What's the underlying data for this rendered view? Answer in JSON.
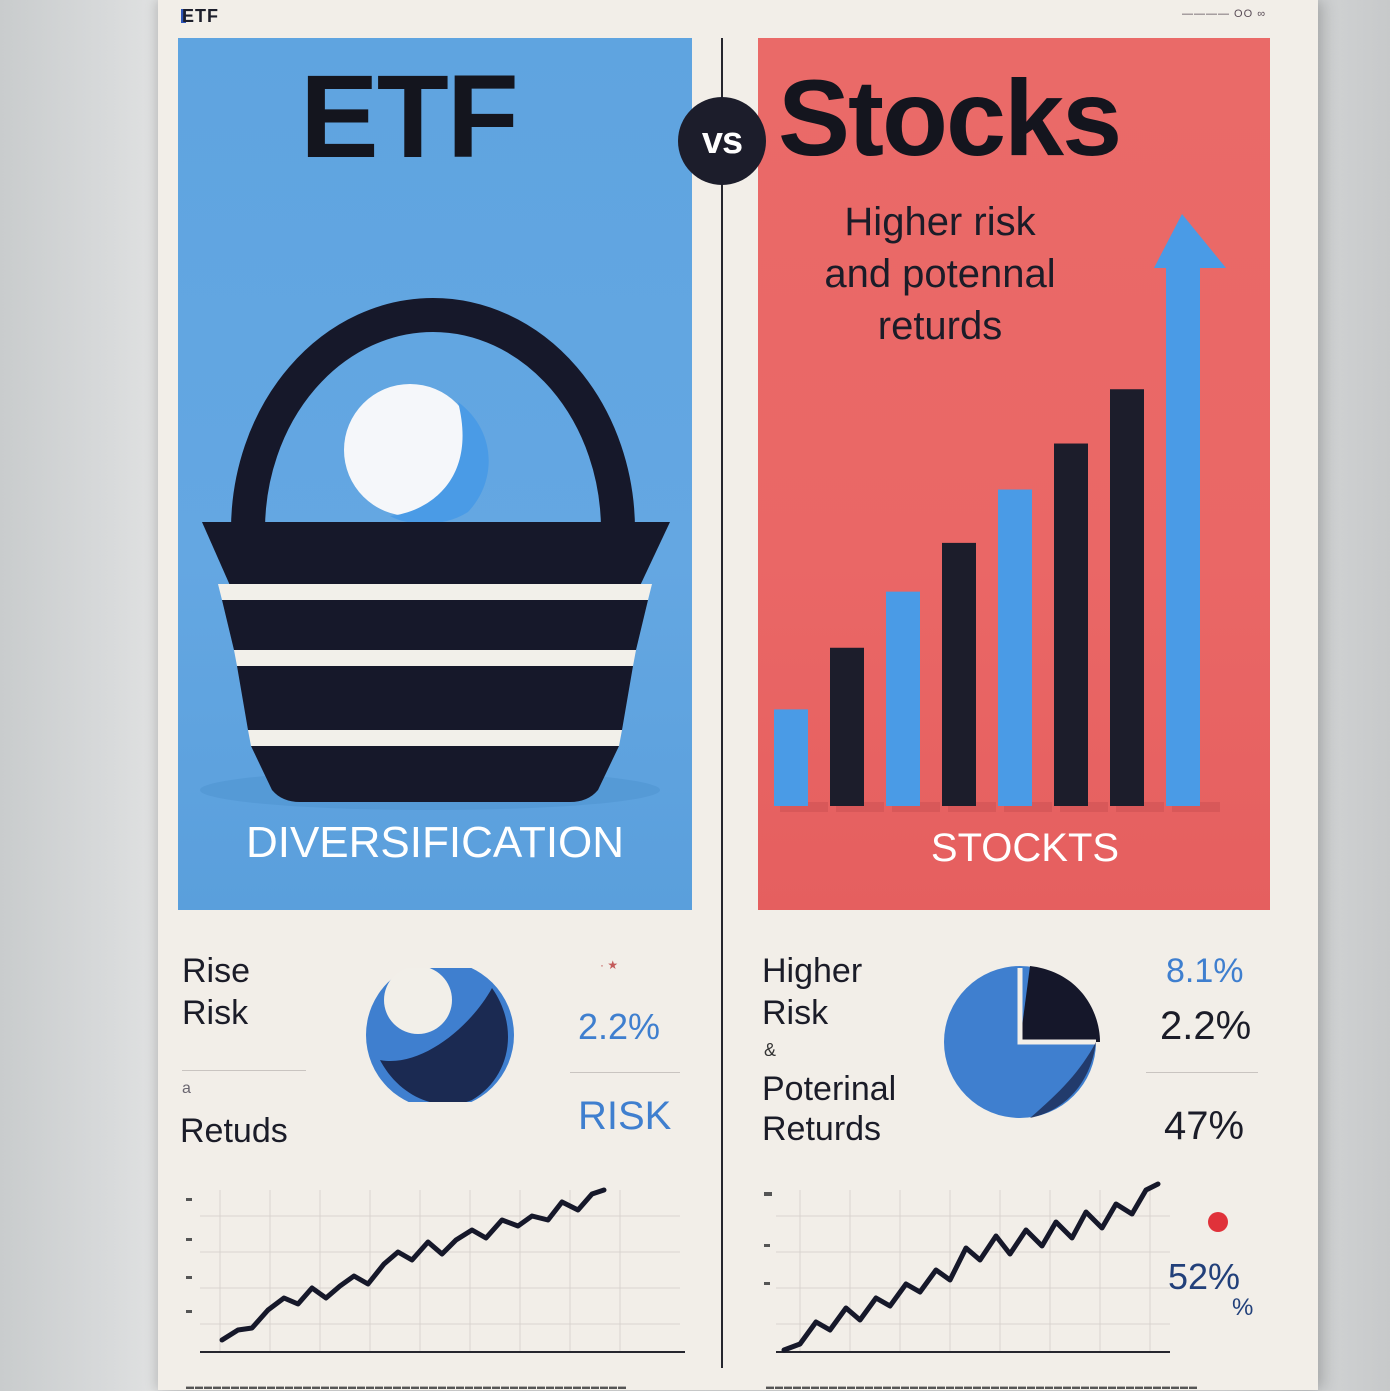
{
  "header": {
    "brand": "ETF",
    "top_right": "———— OO ∞"
  },
  "etf_panel": {
    "title": "ETF",
    "caption": "DIVERSIFICATION"
  },
  "vs_label": "vs",
  "stocks_panel": {
    "title": "Stocks",
    "subtitle_lines": [
      "Higher risk",
      "and potennal",
      "returds"
    ],
    "caption": "STOCKTS",
    "bars": [
      {
        "value": 1.05,
        "color": "blue"
      },
      {
        "value": 1.72,
        "color": "dark"
      },
      {
        "value": 2.33,
        "color": "blue"
      },
      {
        "value": 2.86,
        "color": "dark"
      },
      {
        "value": 3.44,
        "color": "blue"
      },
      {
        "value": 3.94,
        "color": "dark"
      },
      {
        "value": 4.53,
        "color": "dark"
      },
      {
        "value": 5.9,
        "color": "blue"
      }
    ]
  },
  "etf_stats": {
    "label_line1": "Rise",
    "label_line2": "Risk",
    "label_small": "a",
    "label_line3": "Retuds",
    "pct_top": "2.2%",
    "pct_top_note": "· ★",
    "risk_label": "RISK"
  },
  "stocks_stats": {
    "label_line1": "Higher",
    "label_line2": "Risk",
    "label_amp": "&",
    "label_line3": "Poterinal",
    "label_line4": "Returds",
    "pct_1": "8.1%",
    "pct_2": "2.2%",
    "pct_3": "47%",
    "pct_4": "52%",
    "pct_4_sub": "%"
  },
  "colors": {
    "etf_blue": "#5fa4e0",
    "stocks_red": "#ea6a68",
    "navy": "#1c1d2b",
    "bar_blue": "#4a9be6",
    "paper": "#f2eee8"
  }
}
